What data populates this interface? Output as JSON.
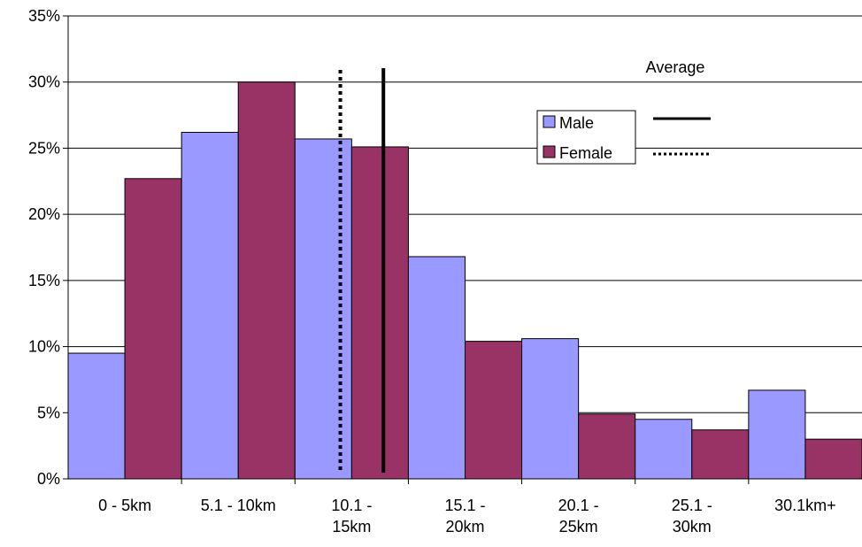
{
  "chart_data": {
    "type": "bar",
    "categories": [
      [
        "0 - 5km"
      ],
      [
        "5.1 - 10km"
      ],
      [
        "10.1 -",
        "15km"
      ],
      [
        "15.1 -",
        "20km"
      ],
      [
        "20.1 -",
        "25km"
      ],
      [
        "25.1 -",
        "30km"
      ],
      [
        "30.1km+"
      ]
    ],
    "series": [
      {
        "name": "Male",
        "color": "#9999ff",
        "values": [
          9.5,
          26.2,
          25.7,
          16.8,
          10.6,
          4.5,
          6.7
        ]
      },
      {
        "name": "Female",
        "color": "#993366",
        "values": [
          22.7,
          30.0,
          25.1,
          10.4,
          4.9,
          3.7,
          3.0
        ]
      }
    ],
    "ylim": [
      0,
      35
    ],
    "yticks": [
      "0%",
      "5%",
      "10%",
      "15%",
      "20%",
      "25%",
      "30%",
      "35%"
    ],
    "ytick_values": [
      0,
      5,
      10,
      15,
      20,
      25,
      30,
      35
    ],
    "grid": true,
    "legend_position": "upper-right",
    "average_lines": {
      "title": "Average",
      "male": {
        "series": "Male",
        "style": "solid",
        "value_category_position": 2.78
      },
      "female": {
        "series": "Female",
        "style": "dotted",
        "value_category_position": 2.4
      }
    }
  }
}
